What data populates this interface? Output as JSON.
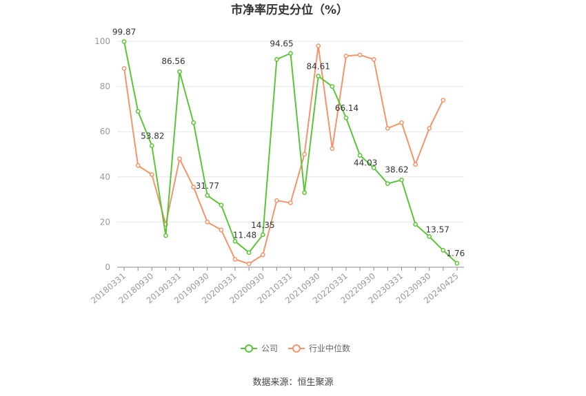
{
  "chart_data": {
    "type": "line",
    "title": "市净率历史分位（%）",
    "ylim": [
      0,
      100
    ],
    "yticks": [
      0,
      20,
      40,
      60,
      80,
      100
    ],
    "grid": true,
    "legend_position": "bottom-center",
    "x": [
      "20180331",
      "20180630",
      "20180930",
      "20181231",
      "20190331",
      "20190630",
      "20190930",
      "20191231",
      "20200331",
      "20200630",
      "20200930",
      "20201231",
      "20210331",
      "20210630",
      "20210930",
      "20211231",
      "20220331",
      "20220630",
      "20220930",
      "20221231",
      "20230331",
      "20230630",
      "20230930",
      "20231231",
      "20240425"
    ],
    "xtick_labels": [
      "20180331",
      "20180930",
      "20190331",
      "20190930",
      "20200331",
      "20200930",
      "20210331",
      "20210930",
      "20220331",
      "20220930",
      "20230331",
      "20230930",
      "20240425"
    ],
    "series": [
      {
        "name": "公司",
        "color": "#5ac437",
        "values": [
          99.87,
          69,
          53.82,
          14,
          86.56,
          64,
          31.77,
          27.5,
          11.48,
          6.5,
          14.35,
          92,
          94.65,
          33,
          84.61,
          80,
          66.14,
          49.5,
          44.03,
          37,
          38.62,
          19,
          13.57,
          7.5,
          1.76
        ],
        "labeled": [
          {
            "index": 0,
            "text": "99.87"
          },
          {
            "index": 2,
            "text": "53.82"
          },
          {
            "index": 4,
            "text": "86.56"
          },
          {
            "index": 6,
            "text": "31.77"
          },
          {
            "index": 8,
            "text": "11.48"
          },
          {
            "index": 10,
            "text": "14.35"
          },
          {
            "index": 12,
            "text": "94.65"
          },
          {
            "index": 14,
            "text": "84.61"
          },
          {
            "index": 16,
            "text": "66.14"
          },
          {
            "index": 18,
            "text": "44.03"
          },
          {
            "index": 20,
            "text": "38.62"
          },
          {
            "index": 22,
            "text": "13.57"
          },
          {
            "index": 24,
            "text": "1.76"
          }
        ]
      },
      {
        "name": "行业中位数",
        "color": "#f4936a",
        "values": [
          88,
          45,
          41,
          19,
          48,
          35.5,
          20,
          16.5,
          3.5,
          1.5,
          5.5,
          29.5,
          28.5,
          50,
          98,
          52.5,
          93.5,
          94,
          92,
          61.5,
          64,
          45.5,
          61.5,
          74,
          null
        ]
      }
    ]
  },
  "source": "数据来源：恒生聚源"
}
